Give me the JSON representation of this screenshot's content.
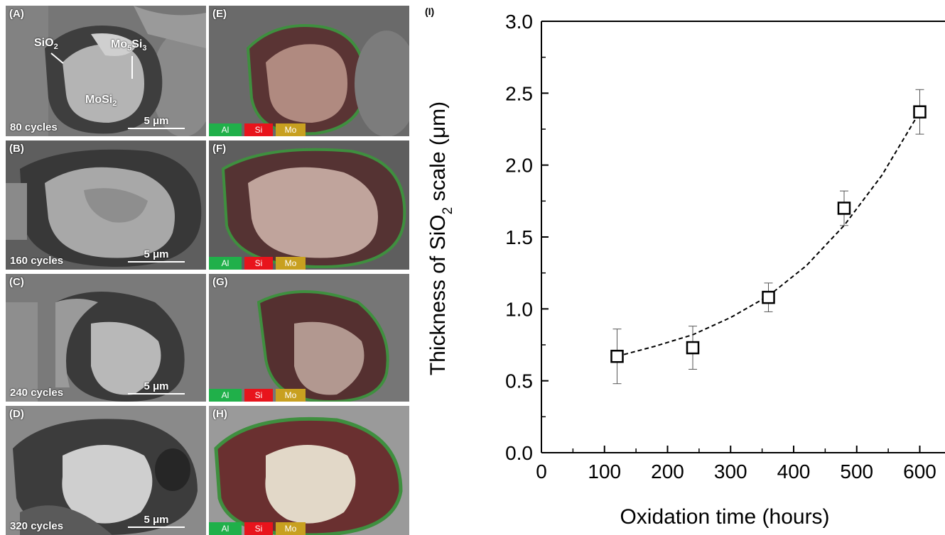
{
  "panels": [
    {
      "label": "(A)",
      "cycles": "80 cycles",
      "scale": "5 μm"
    },
    {
      "label": "(B)",
      "cycles": "160 cycles",
      "scale": "5 μm"
    },
    {
      "label": "(C)",
      "cycles": "240 cycles",
      "scale": "5 μm"
    },
    {
      "label": "(D)",
      "cycles": "320 cycles",
      "scale": "5 μm"
    }
  ],
  "eds_panels": [
    {
      "label": "(E)"
    },
    {
      "label": "(F)"
    },
    {
      "label": "(G)"
    },
    {
      "label": "(H)"
    }
  ],
  "phases": {
    "sio2_main": "SiO",
    "sio2_sub": "2",
    "mo5si3_a": "Mo",
    "mo5si3_b": "5",
    "mo5si3_c": "Si",
    "mo5si3_d": "3",
    "mosi2_main": "MoSi",
    "mosi2_sub": "2"
  },
  "legend": [
    {
      "name": "Al",
      "color": "#20b04a"
    },
    {
      "name": "Si",
      "color": "#e8141c"
    },
    {
      "name": "Mo",
      "color": "#c8a020"
    }
  ],
  "chart_panel_label": "(I)",
  "chart_data": {
    "type": "scatter",
    "xlabel": "Oxidation time (hours)",
    "ylabel_main": "Thickness of SiO",
    "ylabel_sub": "2",
    "ylabel_tail": " scale (μm)",
    "xlim": [
      0,
      640
    ],
    "ylim": [
      0.0,
      3.0
    ],
    "xticks": [
      0,
      100,
      200,
      300,
      400,
      500,
      600
    ],
    "xtick_labels": [
      "0",
      "100",
      "200",
      "300",
      "400",
      "500",
      "600"
    ],
    "yticks": [
      0.0,
      0.5,
      1.0,
      1.5,
      2.0,
      2.5,
      3.0
    ],
    "ytick_labels": [
      "0.0",
      "0.5",
      "1.0",
      "1.5",
      "2.0",
      "2.5",
      "3.0"
    ],
    "points": [
      {
        "x": 120,
        "y": 0.67,
        "err": 0.19
      },
      {
        "x": 240,
        "y": 0.73,
        "err": 0.15
      },
      {
        "x": 360,
        "y": 1.08,
        "err": 0.1
      },
      {
        "x": 480,
        "y": 1.7,
        "err": 0.12
      },
      {
        "x": 600,
        "y": 2.37,
        "err": 0.155
      }
    ],
    "fit": {
      "style": "dashed",
      "x_start": 120,
      "x_end": 600,
      "curve": [
        [
          120,
          0.67
        ],
        [
          180,
          0.74
        ],
        [
          240,
          0.82
        ],
        [
          300,
          0.94
        ],
        [
          360,
          1.09
        ],
        [
          420,
          1.3
        ],
        [
          480,
          1.58
        ],
        [
          540,
          1.93
        ],
        [
          600,
          2.37
        ]
      ]
    }
  }
}
